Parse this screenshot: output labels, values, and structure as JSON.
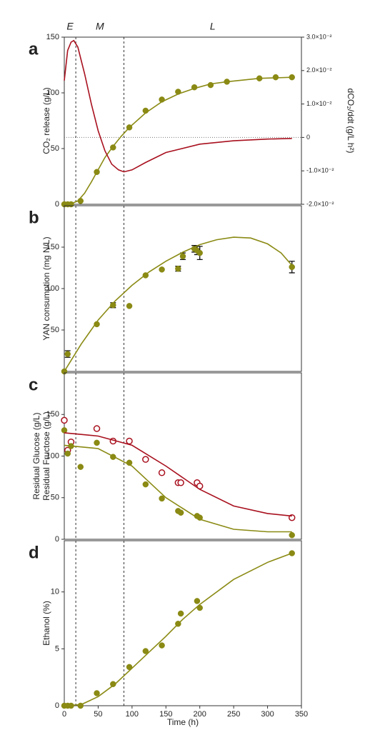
{
  "phase_boundaries": [
    17,
    88
  ],
  "phases": [
    "E",
    "M",
    "L"
  ],
  "chart_data": [
    {
      "type": "scatter",
      "label": "a",
      "ylabel": [
        "CO₂ release (g/L)"
      ],
      "y2label": "dCO₂/ddt (g/L h²)",
      "xlim": [
        0,
        350
      ],
      "ylim": [
        0,
        150
      ],
      "yticks": [
        0,
        50,
        100,
        150
      ],
      "y2lim": [
        -0.02,
        0.03
      ],
      "y2ticks": [
        {
          "value": 0.03,
          "label": "3.0×10⁻²"
        },
        {
          "value": 0.02,
          "label": "2.0×10⁻²"
        },
        {
          "value": 0.01,
          "label": "1.0×10⁻²"
        },
        0,
        {
          "value": -0.01,
          "label": "-1.0×10⁻²"
        },
        {
          "value": -0.02,
          "label": "-2.0×10⁻²"
        }
      ],
      "reference_y2": 0,
      "series": [
        {
          "style": "points",
          "color": "#8a8a14",
          "x": [
            0,
            5,
            10,
            24,
            48,
            72,
            96,
            120,
            144,
            168,
            192,
            216,
            240,
            288,
            312,
            336
          ],
          "values": [
            0,
            0,
            0,
            3,
            29,
            51,
            69,
            84,
            94,
            101,
            105,
            107,
            110,
            113,
            114,
            114
          ]
        },
        {
          "style": "line",
          "color": "#8a8a14",
          "x": [
            0,
            10,
            20,
            30,
            40,
            50,
            60,
            72,
            84,
            96,
            120,
            144,
            168,
            192,
            216,
            240,
            288,
            336
          ],
          "values": [
            0,
            0.5,
            3,
            10,
            20,
            31,
            42,
            52,
            61,
            69,
            82,
            92,
            99,
            104,
            108,
            110,
            113,
            114
          ]
        },
        {
          "style": "line",
          "axis": "y2",
          "color": "#a8101e",
          "x": [
            0,
            5,
            10,
            14,
            20,
            30,
            40,
            50,
            60,
            70,
            80,
            88,
            100,
            120,
            150,
            200,
            250,
            300,
            336
          ],
          "values": [
            0.017,
            0.026,
            0.0285,
            0.029,
            0.027,
            0.019,
            0.01,
            0.002,
            -0.004,
            -0.008,
            -0.0097,
            -0.0103,
            -0.0097,
            -0.0075,
            -0.0045,
            -0.002,
            -0.001,
            -0.0005,
            -0.0003
          ]
        }
      ]
    },
    {
      "type": "scatter",
      "label": "b",
      "ylabel": [
        "YAN consumption (mg N/L)"
      ],
      "xlim": [
        0,
        350
      ],
      "ylim": [
        0,
        200
      ],
      "yticks": [
        50,
        100,
        150
      ],
      "series": [
        {
          "style": "points",
          "color": "#8a8a14",
          "x": [
            0,
            5,
            48,
            72,
            96,
            120,
            144,
            168,
            175,
            192,
            196,
            200,
            336
          ],
          "values": [
            0,
            21,
            57,
            80,
            79,
            116,
            123,
            124,
            139,
            148,
            146,
            143,
            126
          ],
          "errors": [
            null,
            4,
            null,
            3,
            null,
            null,
            null,
            3,
            4,
            4,
            5,
            8,
            7
          ]
        },
        {
          "style": "line",
          "color": "#8a8a14",
          "x": [
            0,
            25,
            50,
            75,
            100,
            125,
            150,
            175,
            200,
            225,
            250,
            275,
            300,
            320,
            336
          ],
          "values": [
            0,
            33,
            62,
            85,
            104,
            120,
            133,
            144,
            153,
            159,
            162,
            161,
            154,
            143,
            128
          ]
        }
      ]
    },
    {
      "type": "scatter",
      "label": "c",
      "ylabel": [
        "Residual Glucose (g/L)",
        "Residual Fructose (g/L)"
      ],
      "xlim": [
        0,
        350
      ],
      "ylim": [
        0,
        200
      ],
      "yticks": [
        0,
        50,
        100,
        150
      ],
      "series": [
        {
          "style": "open",
          "color": "#a8101e",
          "x": [
            0,
            5,
            10,
            48,
            72,
            96,
            120,
            144,
            168,
            172,
            196,
            200,
            336
          ],
          "values": [
            143,
            107,
            117,
            133,
            118,
            118,
            96,
            80,
            68,
            68,
            68,
            64,
            26
          ]
        },
        {
          "style": "points",
          "color": "#8a8a14",
          "x": [
            0,
            5,
            10,
            24,
            48,
            72,
            96,
            120,
            144,
            168,
            172,
            196,
            200,
            336
          ],
          "values": [
            131,
            103,
            112,
            87,
            116,
            99,
            92,
            66,
            49,
            34,
            32,
            28,
            26,
            5
          ]
        },
        {
          "style": "line",
          "color": "#a8101e",
          "x": [
            0,
            50,
            100,
            150,
            200,
            250,
            300,
            336
          ],
          "values": [
            128,
            124,
            113,
            88,
            60,
            40,
            31,
            28
          ]
        },
        {
          "style": "line",
          "color": "#8a8a14",
          "x": [
            0,
            50,
            100,
            150,
            200,
            250,
            300,
            336
          ],
          "values": [
            113,
            109,
            88,
            50,
            24,
            12,
            9,
            9
          ]
        }
      ]
    },
    {
      "type": "scatter",
      "label": "d",
      "ylabel": [
        "Ethanol (%)"
      ],
      "xlabel": "Time (h)",
      "xlim": [
        0,
        350
      ],
      "xticks": [
        0,
        50,
        100,
        150,
        200,
        250,
        300,
        350
      ],
      "ylim": [
        0,
        14.5
      ],
      "yticks": [
        0,
        5,
        10
      ],
      "series": [
        {
          "style": "points",
          "color": "#8a8a14",
          "x": [
            0,
            5,
            10,
            24,
            48,
            72,
            96,
            120,
            144,
            168,
            172,
            196,
            200,
            336
          ],
          "values": [
            0,
            0,
            0,
            0,
            1.1,
            1.9,
            3.4,
            4.8,
            5.3,
            7.2,
            8.1,
            9.2,
            8.6,
            13.4
          ]
        },
        {
          "style": "line",
          "color": "#8a8a14",
          "x": [
            0,
            25,
            50,
            75,
            100,
            125,
            150,
            175,
            200,
            250,
            300,
            336
          ],
          "values": [
            0,
            0.1,
            0.8,
            1.9,
            3.3,
            4.7,
            6.1,
            7.6,
            8.9,
            11.1,
            12.6,
            13.4
          ]
        }
      ]
    }
  ]
}
